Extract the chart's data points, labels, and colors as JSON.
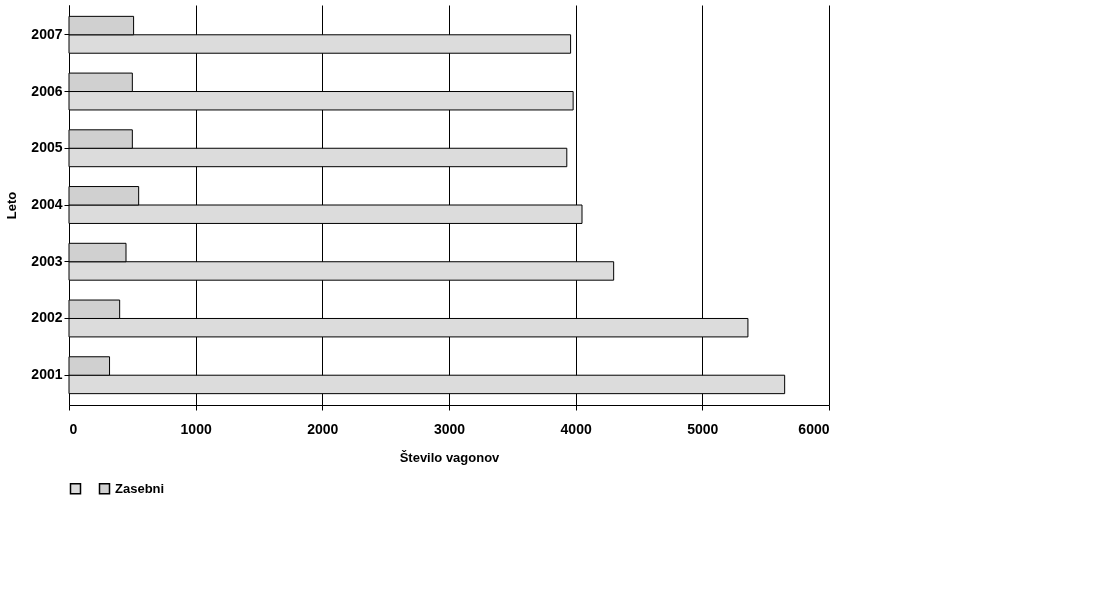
{
  "chart_data": {
    "type": "bar",
    "orientation": "horizontal",
    "xlabel": "Število vagonov",
    "ylabel": "Leto",
    "categories": [
      "2007",
      "2006",
      "2005",
      "2004",
      "2003",
      "2002",
      "2001"
    ],
    "series": [
      {
        "color": "#dcdcdc",
        "values": [
          3960,
          3980,
          3930,
          4050,
          4300,
          5360,
          5650
        ]
      },
      {
        "name": "Zasebni",
        "color": "#d0d0d0",
        "values": [
          510,
          500,
          500,
          550,
          450,
          400,
          320
        ]
      }
    ],
    "xlim": [
      0,
      6000
    ],
    "xticks": [
      0,
      1000,
      2000,
      3000,
      4000,
      5000,
      6000
    ],
    "grid": "x",
    "legend": "bottom"
  }
}
